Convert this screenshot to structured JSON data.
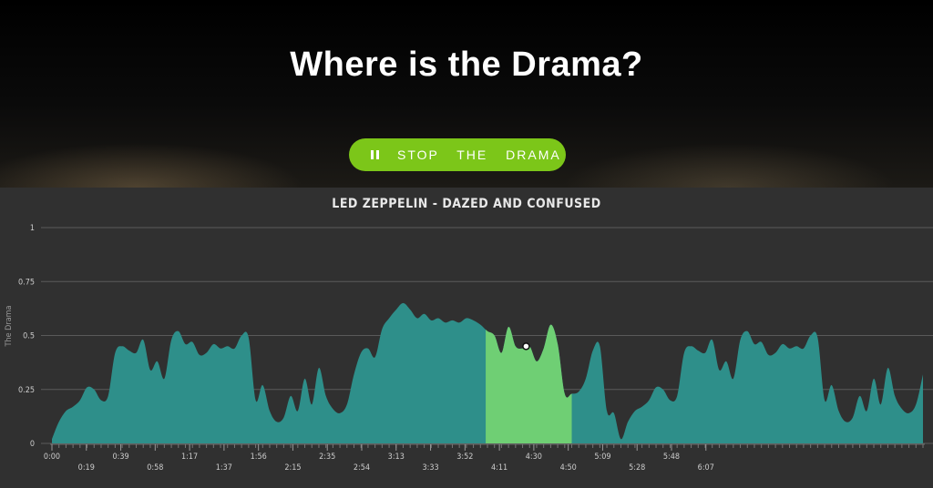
{
  "hero": {
    "title": "Where is the Drama?",
    "button_label": "STOP THE DRAMA",
    "button_icon": "pause-icon",
    "button_color": "#7cc619"
  },
  "chart_data": {
    "type": "area",
    "title": "LED ZEPPELIN - DAZED AND CONFUSED",
    "xlabel": "",
    "ylabel": "The Drama",
    "ylim": [
      0,
      1
    ],
    "y_ticks": [
      "0",
      "0.25",
      "0.5",
      "0.75",
      "1"
    ],
    "grid": true,
    "x_ticks": [
      "0:00",
      "0:19",
      "0:39",
      "0:58",
      "1:17",
      "1:37",
      "1:56",
      "2:15",
      "2:35",
      "2:54",
      "3:13",
      "3:33",
      "3:52",
      "4:11",
      "4:30",
      "4:50",
      "5:09",
      "5:28",
      "5:48",
      "6:07"
    ],
    "colors": {
      "fill": "#2e8f8a",
      "highlight": "#6fcf74",
      "grid": "#5a5a5a",
      "text": "#cccccc"
    },
    "x_unit": "seconds",
    "highlight_range": [
      247,
      296
    ],
    "marker": {
      "x": 270,
      "y": 0.45
    },
    "series": [
      {
        "x": [
          0,
          4,
          8,
          12,
          16,
          20,
          24,
          28,
          32,
          36,
          40,
          44,
          48,
          52,
          56,
          60,
          64,
          68,
          72,
          76,
          80,
          84,
          88,
          92,
          96,
          100,
          104,
          108,
          112,
          116,
          120,
          124,
          128,
          132,
          136,
          140,
          144,
          148,
          152,
          156,
          160,
          164,
          168,
          172,
          176,
          180,
          184,
          188,
          192,
          196,
          200,
          204,
          208,
          212,
          216,
          220,
          224,
          228,
          232,
          236,
          240,
          244,
          248,
          252,
          256,
          260,
          264,
          268,
          272,
          276,
          280,
          284,
          288,
          292,
          296,
          300,
          304,
          308,
          312,
          316,
          320,
          324,
          328,
          332,
          336,
          340,
          344,
          348,
          352,
          356,
          360,
          364,
          368,
          372,
          376,
          380,
          384,
          388,
          392,
          396,
          400,
          404,
          408,
          412,
          416,
          420,
          424,
          428,
          432,
          436,
          440,
          444,
          448,
          452,
          456,
          460,
          464,
          468,
          472,
          476,
          480,
          484,
          488,
          492,
          496
        ],
        "values": [
          0.02,
          0.1,
          0.15,
          0.17,
          0.2,
          0.26,
          0.25,
          0.2,
          0.22,
          0.42,
          0.45,
          0.43,
          0.42,
          0.48,
          0.34,
          0.38,
          0.3,
          0.48,
          0.52,
          0.46,
          0.47,
          0.41,
          0.42,
          0.46,
          0.44,
          0.45,
          0.44,
          0.5,
          0.49,
          0.2,
          0.27,
          0.15,
          0.1,
          0.12,
          0.22,
          0.15,
          0.3,
          0.18,
          0.35,
          0.22,
          0.16,
          0.14,
          0.18,
          0.32,
          0.42,
          0.44,
          0.4,
          0.53,
          0.58,
          0.62,
          0.65,
          0.62,
          0.58,
          0.6,
          0.57,
          0.58,
          0.56,
          0.57,
          0.56,
          0.58,
          0.57,
          0.55,
          0.52,
          0.5,
          0.42,
          0.54,
          0.45,
          0.44,
          0.45,
          0.38,
          0.44,
          0.55,
          0.46,
          0.23,
          0.23,
          0.24,
          0.3,
          0.43,
          0.45,
          0.15,
          0.14,
          0.02,
          0.1,
          0.15,
          0.17,
          0.2,
          0.26,
          0.25,
          0.2,
          0.22,
          0.42,
          0.45,
          0.43,
          0.42,
          0.48,
          0.34,
          0.38,
          0.3,
          0.48,
          0.52,
          0.46,
          0.47,
          0.41,
          0.42,
          0.46,
          0.44,
          0.45,
          0.44,
          0.5,
          0.49,
          0.2,
          0.27,
          0.15,
          0.1,
          0.12,
          0.22,
          0.15,
          0.3,
          0.18,
          0.35,
          0.22,
          0.16,
          0.14,
          0.18,
          0.32
        ]
      }
    ]
  }
}
